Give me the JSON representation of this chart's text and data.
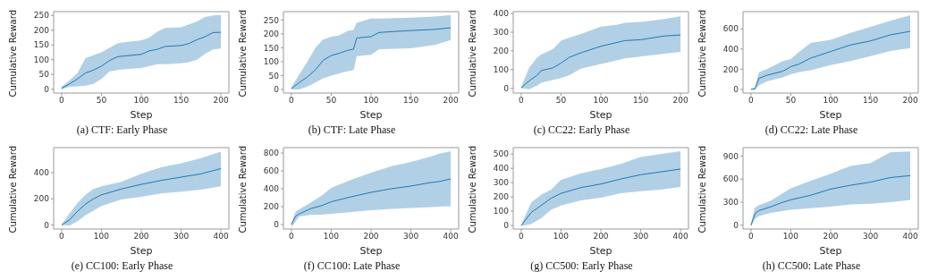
{
  "chart_data": [
    {
      "type": "line",
      "title": "(a) CTF: Early Phase",
      "xlabel": "Step",
      "ylabel": "Cumulative Reward",
      "xlim": [
        -10,
        210
      ],
      "xticks": [
        0,
        50,
        100,
        150,
        200
      ],
      "ylim": [
        -13,
        263
      ],
      "yticks": [
        0,
        50,
        100,
        150,
        200,
        250
      ],
      "grid": false,
      "legend": false,
      "marker": "none",
      "series": [
        {
          "color": "#1f77b4",
          "x": [
            0,
            10,
            20,
            30,
            40,
            50,
            60,
            70,
            80,
            100,
            110,
            120,
            130,
            150,
            160,
            170,
            180,
            190,
            200
          ],
          "values": [
            3,
            18,
            35,
            55,
            65,
            78,
            97,
            110,
            113,
            118,
            130,
            135,
            145,
            148,
            155,
            168,
            178,
            192,
            193
          ],
          "lower": [
            0,
            8,
            10,
            12,
            18,
            35,
            60,
            65,
            68,
            72,
            78,
            85,
            85,
            88,
            92,
            100,
            120,
            135,
            138
          ],
          "upper": [
            8,
            30,
            55,
            105,
            115,
            125,
            140,
            155,
            160,
            165,
            175,
            195,
            208,
            210,
            220,
            230,
            245,
            250,
            252
          ]
        }
      ]
    },
    {
      "type": "line",
      "title": "(b) CTF: Late Phase",
      "xlabel": "Step",
      "ylabel": "Cumulative Reward",
      "xlim": [
        -10,
        210
      ],
      "xticks": [
        0,
        50,
        100,
        150,
        200
      ],
      "ylim": [
        -13,
        280
      ],
      "yticks": [
        0,
        50,
        100,
        150,
        200,
        250
      ],
      "grid": false,
      "legend": false,
      "marker": "none",
      "series": [
        {
          "color": "#1f77b4",
          "x": [
            0,
            10,
            20,
            30,
            40,
            50,
            60,
            70,
            78,
            82,
            100,
            110,
            150,
            180,
            200
          ],
          "values": [
            3,
            25,
            45,
            70,
            105,
            122,
            130,
            140,
            145,
            185,
            190,
            205,
            212,
            216,
            222
          ],
          "lower": [
            0,
            0,
            10,
            25,
            40,
            50,
            58,
            65,
            70,
            120,
            125,
            145,
            148,
            160,
            178
          ],
          "upper": [
            8,
            55,
            100,
            150,
            180,
            190,
            195,
            210,
            215,
            240,
            255,
            255,
            258,
            262,
            268
          ]
        }
      ]
    },
    {
      "type": "line",
      "title": "(c) CC22: Early Phase",
      "xlabel": "Step",
      "ylabel": "Cumulative Reward",
      "xlim": [
        -10,
        210
      ],
      "xticks": [
        0,
        50,
        100,
        150,
        200
      ],
      "ylim": [
        -25,
        410
      ],
      "yticks": [
        0,
        100,
        200,
        300,
        400
      ],
      "grid": false,
      "legend": false,
      "marker": "none",
      "series": [
        {
          "color": "#1f77b4",
          "x": [
            0,
            10,
            20,
            25,
            40,
            50,
            60,
            75,
            100,
            120,
            130,
            150,
            180,
            200
          ],
          "values": [
            3,
            40,
            70,
            95,
            110,
            135,
            165,
            190,
            225,
            245,
            255,
            260,
            280,
            285
          ],
          "lower": [
            0,
            -5,
            15,
            30,
            45,
            55,
            70,
            105,
            130,
            150,
            160,
            170,
            185,
            195
          ],
          "upper": [
            8,
            110,
            165,
            180,
            210,
            255,
            270,
            290,
            330,
            340,
            350,
            355,
            370,
            385
          ]
        }
      ]
    },
    {
      "type": "line",
      "title": "(d) CC22: Late Phase",
      "xlabel": "Step",
      "ylabel": "Cumulative Reward",
      "xlim": [
        -10,
        210
      ],
      "xticks": [
        0,
        50,
        100,
        150,
        200
      ],
      "ylim": [
        -36,
        770
      ],
      "yticks": [
        0,
        200,
        400,
        600
      ],
      "grid": false,
      "legend": false,
      "marker": "none",
      "series": [
        {
          "color": "#1f77b4",
          "x": [
            0,
            5,
            10,
            20,
            40,
            50,
            60,
            75,
            100,
            125,
            150,
            175,
            200
          ],
          "values": [
            0,
            5,
            110,
            140,
            180,
            225,
            250,
            310,
            375,
            440,
            480,
            540,
            575
          ],
          "lower": [
            0,
            0,
            40,
            80,
            120,
            150,
            170,
            190,
            240,
            280,
            330,
            380,
            410
          ],
          "upper": [
            5,
            20,
            170,
            200,
            280,
            300,
            370,
            460,
            490,
            560,
            620,
            680,
            735
          ]
        }
      ]
    },
    {
      "type": "line",
      "title": "(e) CC100: Early Phase",
      "xlabel": "Step",
      "ylabel": "Cumulative Reward",
      "xlim": [
        -20,
        420
      ],
      "xticks": [
        0,
        100,
        200,
        300,
        400
      ],
      "ylim": [
        -30,
        590
      ],
      "yticks": [
        0,
        200,
        400
      ],
      "grid": false,
      "legend": false,
      "marker": "none",
      "series": [
        {
          "color": "#1f77b4",
          "x": [
            0,
            20,
            40,
            60,
            80,
            100,
            150,
            200,
            250,
            300,
            350,
            400
          ],
          "values": [
            0,
            40,
            105,
            160,
            200,
            230,
            275,
            310,
            340,
            365,
            390,
            430
          ],
          "lower": [
            0,
            -5,
            30,
            75,
            110,
            145,
            195,
            215,
            240,
            255,
            270,
            295
          ],
          "upper": [
            5,
            90,
            170,
            230,
            275,
            295,
            330,
            390,
            440,
            470,
            510,
            560
          ]
        }
      ]
    },
    {
      "type": "line",
      "title": "(f) CC100: Late Phase",
      "xlabel": "Step",
      "ylabel": "Cumulative Reward",
      "xlim": [
        -20,
        420
      ],
      "xticks": [
        0,
        100,
        200,
        300,
        400
      ],
      "ylim": [
        -50,
        860
      ],
      "yticks": [
        0,
        200,
        400,
        600,
        800
      ],
      "grid": false,
      "legend": false,
      "marker": "none",
      "series": [
        {
          "color": "#1f77b4",
          "x": [
            0,
            10,
            20,
            50,
            75,
            100,
            150,
            200,
            250,
            300,
            350,
            370,
            400
          ],
          "values": [
            0,
            90,
            120,
            180,
            210,
            255,
            310,
            360,
            400,
            430,
            470,
            480,
            510
          ],
          "lower": [
            -30,
            30,
            90,
            110,
            110,
            120,
            140,
            160,
            175,
            185,
            195,
            200,
            205
          ],
          "upper": [
            10,
            140,
            170,
            250,
            320,
            410,
            500,
            580,
            650,
            700,
            760,
            790,
            820
          ]
        }
      ]
    },
    {
      "type": "line",
      "title": "(g) CC500: Early Phase",
      "xlabel": "Step",
      "ylabel": "Cumulative Reward",
      "xlim": [
        -20,
        420
      ],
      "xticks": [
        0,
        100,
        200,
        300,
        400
      ],
      "ylim": [
        -25,
        545
      ],
      "yticks": [
        0,
        100,
        200,
        300,
        400,
        500
      ],
      "grid": false,
      "legend": false,
      "marker": "none",
      "series": [
        {
          "color": "#1f77b4",
          "x": [
            0,
            25,
            50,
            75,
            100,
            150,
            200,
            250,
            300,
            350,
            400
          ],
          "values": [
            0,
            90,
            140,
            190,
            225,
            265,
            290,
            325,
            355,
            375,
            395
          ],
          "lower": [
            -5,
            10,
            50,
            110,
            140,
            175,
            195,
            225,
            240,
            250,
            270
          ],
          "upper": [
            5,
            160,
            215,
            250,
            320,
            365,
            395,
            430,
            480,
            500,
            520
          ]
        }
      ]
    },
    {
      "type": "line",
      "title": "(h) CC500: Late Phase",
      "xlabel": "Step",
      "ylabel": "Cumulative Reward",
      "xlim": [
        -20,
        420
      ],
      "xticks": [
        0,
        100,
        200,
        300,
        400
      ],
      "ylim": [
        -50,
        1010
      ],
      "yticks": [
        0,
        300,
        600,
        900
      ],
      "grid": false,
      "legend": false,
      "marker": "none",
      "series": [
        {
          "color": "#1f77b4",
          "x": [
            0,
            10,
            20,
            50,
            75,
            100,
            150,
            200,
            250,
            300,
            350,
            400
          ],
          "values": [
            0,
            150,
            190,
            240,
            290,
            330,
            390,
            470,
            520,
            560,
            620,
            645
          ],
          "lower": [
            -20,
            80,
            120,
            160,
            180,
            200,
            220,
            240,
            270,
            280,
            300,
            330
          ],
          "upper": [
            20,
            230,
            260,
            320,
            400,
            480,
            580,
            670,
            770,
            810,
            950,
            960
          ]
        }
      ]
    }
  ]
}
